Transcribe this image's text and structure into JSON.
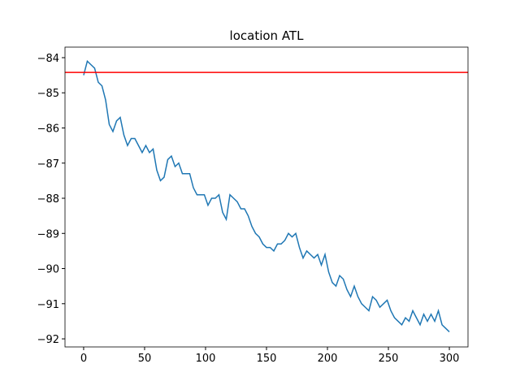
{
  "chart_data": {
    "type": "line",
    "title": "location ATL",
    "x": [
      0,
      3,
      6,
      9,
      12,
      15,
      18,
      21,
      24,
      27,
      30,
      33,
      36,
      39,
      42,
      45,
      48,
      51,
      54,
      57,
      60,
      63,
      66,
      69,
      72,
      75,
      78,
      81,
      84,
      87,
      90,
      93,
      96,
      99,
      102,
      105,
      108,
      111,
      114,
      117,
      120,
      123,
      126,
      129,
      132,
      135,
      138,
      141,
      144,
      147,
      150,
      153,
      156,
      159,
      162,
      165,
      168,
      171,
      174,
      177,
      180,
      183,
      186,
      189,
      192,
      195,
      198,
      201,
      204,
      207,
      210,
      213,
      216,
      219,
      222,
      225,
      228,
      231,
      234,
      237,
      240,
      243,
      246,
      249,
      252,
      255,
      258,
      261,
      264,
      267,
      270,
      273,
      276,
      279,
      282,
      285,
      288,
      291,
      294,
      297,
      300
    ],
    "series": [
      {
        "color": "#1f77b4",
        "values": [
          -84.5,
          -84.1,
          -84.2,
          -84.3,
          -84.7,
          -84.8,
          -85.2,
          -85.9,
          -86.1,
          -85.8,
          -85.7,
          -86.2,
          -86.5,
          -86.3,
          -86.3,
          -86.5,
          -86.7,
          -86.5,
          -86.7,
          -86.6,
          -87.2,
          -87.5,
          -87.4,
          -86.9,
          -86.8,
          -87.1,
          -87.0,
          -87.3,
          -87.3,
          -87.3,
          -87.7,
          -87.9,
          -87.9,
          -87.9,
          -88.2,
          -88.0,
          -88.0,
          -87.9,
          -88.4,
          -88.6,
          -87.9,
          -88.0,
          -88.1,
          -88.3,
          -88.3,
          -88.5,
          -88.8,
          -89.0,
          -89.1,
          -89.3,
          -89.4,
          -89.4,
          -89.5,
          -89.3,
          -89.3,
          -89.2,
          -89.0,
          -89.1,
          -89.0,
          -89.4,
          -89.7,
          -89.5,
          -89.6,
          -89.7,
          -89.6,
          -89.9,
          -89.6,
          -90.1,
          -90.4,
          -90.5,
          -90.2,
          -90.3,
          -90.6,
          -90.8,
          -90.5,
          -90.8,
          -91.0,
          -91.1,
          -91.2,
          -90.8,
          -90.9,
          -91.1,
          -91.0,
          -90.9,
          -91.2,
          -91.4,
          -91.5,
          -91.6,
          -91.4,
          -91.5,
          -91.2,
          -91.4,
          -91.6,
          -91.3,
          -91.5,
          -91.3,
          -91.5,
          -91.2,
          -91.6,
          -91.7,
          -91.8
        ]
      }
    ],
    "hline": {
      "value": -84.42,
      "color": "#ff0000"
    },
    "xlim": [
      -15.3,
      315.3
    ],
    "xticks": [
      0,
      50,
      100,
      150,
      200,
      250,
      300
    ],
    "ylim": [
      -92.23,
      -83.7
    ],
    "yticks": [
      {
        "value": -92,
        "label": "−92"
      },
      {
        "value": -91,
        "label": "−91"
      },
      {
        "value": -90,
        "label": "−90"
      },
      {
        "value": -89,
        "label": "−89"
      },
      {
        "value": -88,
        "label": "−88"
      },
      {
        "value": -87,
        "label": "−87"
      },
      {
        "value": -86,
        "label": "−86"
      },
      {
        "value": -85,
        "label": "−85"
      },
      {
        "value": -84,
        "label": "−84"
      }
    ]
  }
}
